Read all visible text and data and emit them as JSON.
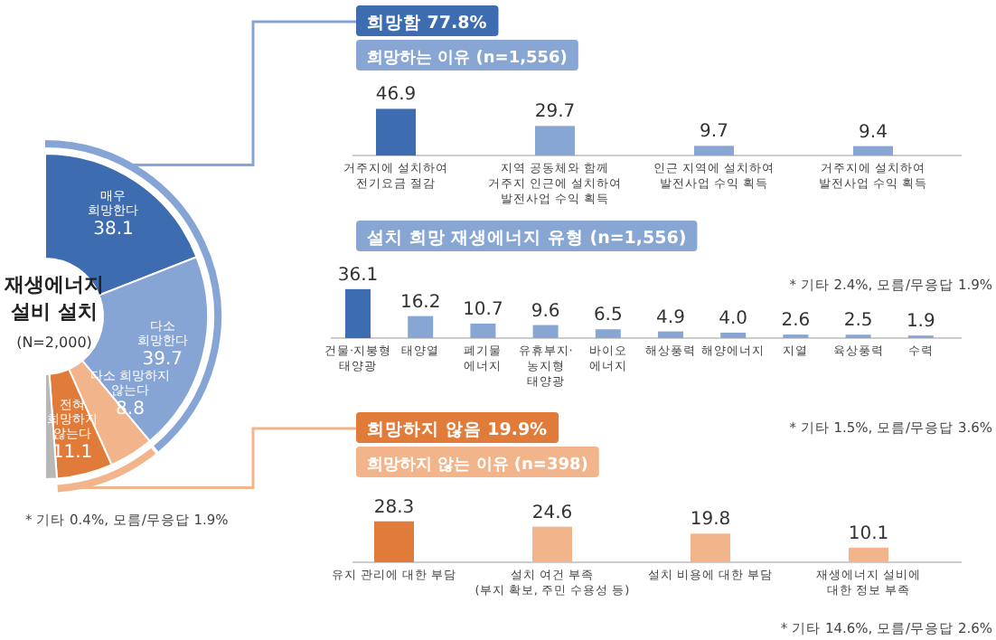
{
  "chart_data": [
    {
      "type": "donut",
      "title": "재생에너지\n설비 설치",
      "subtitle": "(N=2,000)",
      "categories": [
        "매우\n희망한다",
        "다소\n희망한다",
        "다소 희망하지\n않는다",
        "전혀\n희망하지\n않는다",
        null
      ],
      "values": [
        38.1,
        39.7,
        8.8,
        11.1,
        2.3
      ],
      "colors": [
        "#3d6cb0",
        "#86a5d4",
        "#f2b48a",
        "#e07b39",
        "#b8b8b8"
      ],
      "value_labels": [
        "38.1",
        "39.7",
        "8.8",
        "11.1",
        null
      ],
      "annotations": [
        "* 기타 0.4%, 모름/무응답 1.9%"
      ]
    },
    {
      "type": "bar",
      "title": "희망함 77.8%",
      "subtitle": "희망하는 이유 (n=1,556)",
      "categories": [
        "거주지에 설치하여\n전기요금 절감",
        "지역 공동체와 함께\n거주지 인근에 설치하여\n발전사업 수익 획득",
        "인근 지역에 설치하여\n발전사업 수익 획득",
        "거주지에 설치하여\n발전사업 수익 획득"
      ],
      "values": [
        46.9,
        29.7,
        9.7,
        9.4
      ],
      "colors": [
        "#3d6cb0",
        "#88a6d3",
        "#88a6d3",
        "#88a6d3"
      ],
      "data_labels": true,
      "annotations": [
        "* 기타 2.4%, 모름/무응답 1.9%"
      ]
    },
    {
      "type": "bar",
      "title": "설치 희망 재생에너지 유형 (n=1,556)",
      "categories": [
        "건물·지붕형\n태양광",
        "태양열",
        "폐기물\n에너지",
        "유휴부지·\n농지형\n태양광",
        "바이오\n에너지",
        "해상풍력",
        "해양에너지",
        "지열",
        "육상풍력",
        "수력"
      ],
      "values": [
        36.1,
        16.2,
        10.7,
        9.6,
        6.5,
        4.9,
        4.0,
        2.6,
        2.5,
        1.9
      ],
      "colors": [
        "#3d6cb0",
        "#88a6d3",
        "#88a6d3",
        "#88a6d3",
        "#88a6d3",
        "#88a6d3",
        "#88a6d3",
        "#88a6d3",
        "#88a6d3",
        "#88a6d3"
      ],
      "value_labels": [
        "36.1",
        "16.2",
        "10.7",
        "9.6",
        "6.5",
        "4.9",
        "4.0",
        "2.6",
        "2.5",
        "1.9"
      ],
      "annotations": [
        "* 기타 1.5%, 모름/무응답 3.6%"
      ]
    },
    {
      "type": "bar",
      "title": "희망하지 않음 19.9%",
      "subtitle": "희망하지 않는 이유 (n=398)",
      "categories": [
        "유지 관리에 대한 부담",
        "설치 여건 부족\n(부지 확보, 주민 수용성 등)",
        "설치 비용에 대한 부담",
        "재생에너지 설비에\n대한 정보 부족"
      ],
      "values": [
        28.3,
        24.6,
        19.8,
        10.1
      ],
      "colors": [
        "#e07b39",
        "#f2b48a",
        "#f2b48a",
        "#f2b48a"
      ],
      "data_labels": true,
      "annotations": [
        "* 기타 14.6%, 모름/무응답 2.6%"
      ]
    }
  ]
}
